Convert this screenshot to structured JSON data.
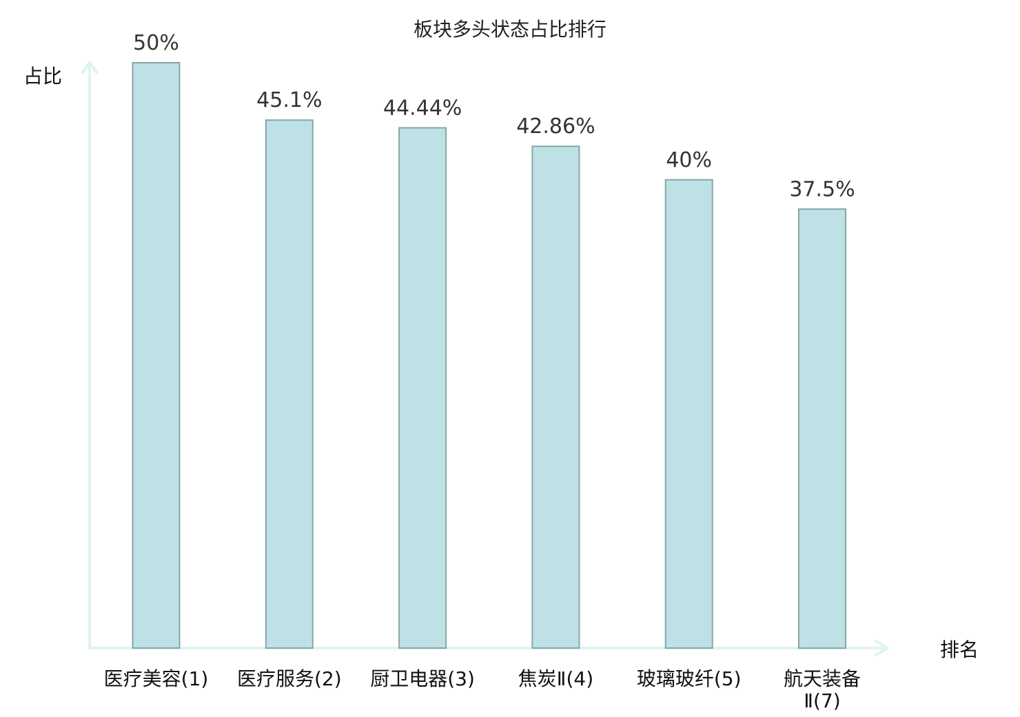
{
  "chart_data": {
    "type": "bar",
    "title": "板块多头状态占比排行",
    "xlabel": "排名",
    "ylabel": "占比",
    "categories": [
      [
        "医疗美容(1)"
      ],
      [
        "医疗服务(2)"
      ],
      [
        "厨卫电器(3)"
      ],
      [
        "焦炭Ⅱ(4)"
      ],
      [
        "玻璃玻纤(5)"
      ],
      [
        "航天装备",
        "Ⅱ(7)"
      ]
    ],
    "values": [
      50,
      45.1,
      44.44,
      42.86,
      40,
      37.5
    ],
    "value_labels": [
      "50%",
      "45.1%",
      "44.44%",
      "42.86%",
      "40%",
      "37.5%"
    ],
    "ylim": [
      0,
      50
    ],
    "grid": false,
    "highlight_index": 5,
    "colors": {
      "bar_fill": "#bde1e4",
      "bar_stroke": "#86a6a8",
      "axis": "#e0f3f1",
      "highlight_text": "#e00000",
      "text": "#111111"
    }
  }
}
